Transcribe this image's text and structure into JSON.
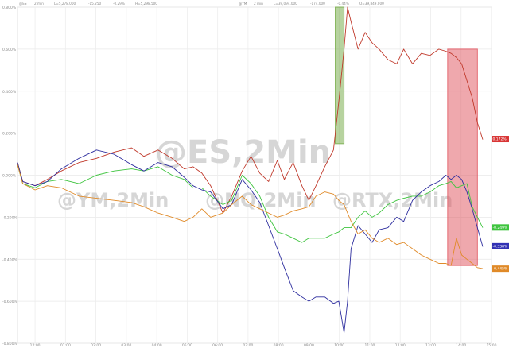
{
  "chart_data": {
    "type": "line",
    "title": "",
    "xlabel": "",
    "ylabel": "",
    "grid": true,
    "watermarks": [
      "@ES,2Min",
      "@YM,2Min",
      "@NQ,2Min",
      "@RTX,2Min"
    ],
    "header": {
      "es": [
        "@ES",
        "2 min",
        "L=5,278.000",
        "-15.250",
        "-0.29%",
        "H=5,298.500"
      ],
      "ym": [
        "@YM",
        "2 min",
        "L=39,094.000",
        "-174.000",
        "-0.44%",
        "O=39,849.000"
      ]
    },
    "ylim": [
      -0.8,
      0.8
    ],
    "x_tick_labels": [
      "12:00",
      "01:00",
      "02:00",
      "03:00",
      "04:00",
      "05:00",
      "06:00",
      "07:00",
      "08:00",
      "09:00",
      "10:00",
      "11:00",
      "12:00",
      "13:00",
      "14:00",
      "15:00"
    ],
    "y_tick_labels": [
      "0.800%",
      "0.600%",
      "0.400%",
      "0.200%",
      "0.000%",
      "-0.200%",
      "-0.400%",
      "-0.600%",
      "-0.800%"
    ],
    "highlight_regions": [
      {
        "x0": 181,
        "x1": 186,
        "color": "#6fa83f"
      },
      {
        "x0": 245,
        "x1": 262,
        "color": "#e0525c"
      }
    ],
    "end_labels": [
      {
        "text": "0.172%",
        "value": 0.172,
        "color": "#d83535"
      },
      {
        "text": "-0.249%",
        "value": -0.249,
        "color": "#3ec43e"
      },
      {
        "text": "-0.338%",
        "value": -0.338,
        "color": "#3232b4"
      },
      {
        "text": "-0.445%",
        "value": -0.445,
        "color": "#e08a28"
      }
    ],
    "series": [
      {
        "color": "#c0392b",
        "points": [
          [
            0,
            0.06
          ],
          [
            3,
            -0.03
          ],
          [
            10,
            -0.05
          ],
          [
            17,
            -0.02
          ],
          [
            25,
            0.02
          ],
          [
            35,
            0.06
          ],
          [
            45,
            0.08
          ],
          [
            55,
            0.11
          ],
          [
            65,
            0.13
          ],
          [
            72,
            0.09
          ],
          [
            80,
            0.12
          ],
          [
            88,
            0.08
          ],
          [
            95,
            0.03
          ],
          [
            100,
            0.04
          ],
          [
            105,
            0.01
          ],
          [
            110,
            -0.05
          ],
          [
            117,
            -0.18
          ],
          [
            122,
            -0.1
          ],
          [
            128,
            0.02
          ],
          [
            133,
            0.09
          ],
          [
            138,
            0.01
          ],
          [
            143,
            -0.03
          ],
          [
            148,
            0.07
          ],
          [
            152,
            -0.02
          ],
          [
            157,
            0.06
          ],
          [
            162,
            -0.05
          ],
          [
            166,
            -0.12
          ],
          [
            170,
            -0.05
          ],
          [
            175,
            0.04
          ],
          [
            180,
            0.12
          ],
          [
            183,
            0.35
          ],
          [
            186,
            0.6
          ],
          [
            188,
            0.8
          ],
          [
            190,
            0.73
          ],
          [
            194,
            0.6
          ],
          [
            198,
            0.68
          ],
          [
            202,
            0.63
          ],
          [
            206,
            0.6
          ],
          [
            211,
            0.55
          ],
          [
            216,
            0.53
          ],
          [
            220,
            0.6
          ],
          [
            225,
            0.53
          ],
          [
            230,
            0.58
          ],
          [
            235,
            0.57
          ],
          [
            240,
            0.6
          ],
          [
            244,
            0.59
          ],
          [
            247,
            0.58
          ],
          [
            250,
            0.56
          ],
          [
            253,
            0.53
          ],
          [
            256,
            0.45
          ],
          [
            259,
            0.37
          ],
          [
            262,
            0.25
          ],
          [
            265,
            0.17
          ]
        ]
      },
      {
        "color": "#3ec43e",
        "points": [
          [
            0,
            0.05
          ],
          [
            3,
            -0.04
          ],
          [
            10,
            -0.06
          ],
          [
            17,
            -0.03
          ],
          [
            25,
            -0.02
          ],
          [
            35,
            -0.04
          ],
          [
            45,
            0.0
          ],
          [
            55,
            0.02
          ],
          [
            65,
            0.03
          ],
          [
            72,
            0.02
          ],
          [
            80,
            0.04
          ],
          [
            88,
            0.0
          ],
          [
            95,
            -0.02
          ],
          [
            100,
            -0.06
          ],
          [
            105,
            -0.06
          ],
          [
            110,
            -0.1
          ],
          [
            117,
            -0.14
          ],
          [
            122,
            -0.12
          ],
          [
            128,
            0.0
          ],
          [
            133,
            -0.04
          ],
          [
            138,
            -0.1
          ],
          [
            143,
            -0.2
          ],
          [
            148,
            -0.27
          ],
          [
            152,
            -0.28
          ],
          [
            157,
            -0.3
          ],
          [
            162,
            -0.32
          ],
          [
            166,
            -0.3
          ],
          [
            170,
            -0.3
          ],
          [
            175,
            -0.3
          ],
          [
            180,
            -0.28
          ],
          [
            183,
            -0.27
          ],
          [
            186,
            -0.25
          ],
          [
            190,
            -0.25
          ],
          [
            194,
            -0.2
          ],
          [
            198,
            -0.17
          ],
          [
            202,
            -0.2
          ],
          [
            206,
            -0.18
          ],
          [
            211,
            -0.14
          ],
          [
            216,
            -0.12
          ],
          [
            220,
            -0.11
          ],
          [
            225,
            -0.1
          ],
          [
            230,
            -0.1
          ],
          [
            235,
            -0.08
          ],
          [
            240,
            -0.05
          ],
          [
            244,
            -0.04
          ],
          [
            247,
            -0.03
          ],
          [
            250,
            -0.06
          ],
          [
            253,
            -0.05
          ],
          [
            256,
            -0.04
          ],
          [
            259,
            -0.15
          ],
          [
            262,
            -0.2
          ],
          [
            265,
            -0.25
          ]
        ]
      },
      {
        "color": "#2d2d9e",
        "points": [
          [
            0,
            0.06
          ],
          [
            3,
            -0.03
          ],
          [
            10,
            -0.05
          ],
          [
            17,
            -0.03
          ],
          [
            25,
            0.03
          ],
          [
            35,
            0.08
          ],
          [
            45,
            0.12
          ],
          [
            55,
            0.1
          ],
          [
            65,
            0.05
          ],
          [
            72,
            0.02
          ],
          [
            80,
            0.06
          ],
          [
            88,
            0.04
          ],
          [
            95,
            -0.01
          ],
          [
            100,
            -0.05
          ],
          [
            105,
            -0.07
          ],
          [
            110,
            -0.08
          ],
          [
            117,
            -0.16
          ],
          [
            122,
            -0.14
          ],
          [
            128,
            -0.02
          ],
          [
            133,
            -0.07
          ],
          [
            138,
            -0.13
          ],
          [
            143,
            -0.24
          ],
          [
            148,
            -0.35
          ],
          [
            152,
            -0.44
          ],
          [
            157,
            -0.55
          ],
          [
            162,
            -0.58
          ],
          [
            166,
            -0.6
          ],
          [
            170,
            -0.58
          ],
          [
            175,
            -0.58
          ],
          [
            180,
            -0.61
          ],
          [
            183,
            -0.6
          ],
          [
            186,
            -0.75
          ],
          [
            188,
            -0.6
          ],
          [
            190,
            -0.35
          ],
          [
            194,
            -0.24
          ],
          [
            198,
            -0.28
          ],
          [
            202,
            -0.32
          ],
          [
            206,
            -0.26
          ],
          [
            211,
            -0.25
          ],
          [
            216,
            -0.2
          ],
          [
            220,
            -0.22
          ],
          [
            225,
            -0.12
          ],
          [
            230,
            -0.08
          ],
          [
            235,
            -0.05
          ],
          [
            240,
            -0.03
          ],
          [
            244,
            0.0
          ],
          [
            247,
            -0.02
          ],
          [
            250,
            0.0
          ],
          [
            253,
            -0.02
          ],
          [
            256,
            -0.08
          ],
          [
            259,
            -0.16
          ],
          [
            262,
            -0.25
          ],
          [
            265,
            -0.34
          ]
        ]
      },
      {
        "color": "#e08a28",
        "points": [
          [
            0,
            0.05
          ],
          [
            3,
            -0.04
          ],
          [
            10,
            -0.07
          ],
          [
            17,
            -0.05
          ],
          [
            25,
            -0.06
          ],
          [
            35,
            -0.1
          ],
          [
            45,
            -0.11
          ],
          [
            55,
            -0.12
          ],
          [
            65,
            -0.13
          ],
          [
            72,
            -0.15
          ],
          [
            80,
            -0.18
          ],
          [
            88,
            -0.2
          ],
          [
            95,
            -0.22
          ],
          [
            100,
            -0.2
          ],
          [
            105,
            -0.16
          ],
          [
            110,
            -0.2
          ],
          [
            117,
            -0.18
          ],
          [
            122,
            -0.14
          ],
          [
            128,
            -0.1
          ],
          [
            133,
            -0.14
          ],
          [
            138,
            -0.16
          ],
          [
            143,
            -0.18
          ],
          [
            148,
            -0.2
          ],
          [
            152,
            -0.19
          ],
          [
            157,
            -0.17
          ],
          [
            162,
            -0.16
          ],
          [
            166,
            -0.15
          ],
          [
            170,
            -0.1
          ],
          [
            175,
            -0.08
          ],
          [
            180,
            -0.09
          ],
          [
            183,
            -0.12
          ],
          [
            186,
            -0.14
          ],
          [
            190,
            -0.22
          ],
          [
            194,
            -0.28
          ],
          [
            198,
            -0.26
          ],
          [
            202,
            -0.3
          ],
          [
            206,
            -0.32
          ],
          [
            211,
            -0.3
          ],
          [
            216,
            -0.33
          ],
          [
            220,
            -0.32
          ],
          [
            225,
            -0.35
          ],
          [
            230,
            -0.38
          ],
          [
            235,
            -0.4
          ],
          [
            240,
            -0.42
          ],
          [
            244,
            -0.42
          ],
          [
            247,
            -0.43
          ],
          [
            250,
            -0.3
          ],
          [
            253,
            -0.38
          ],
          [
            256,
            -0.4
          ],
          [
            259,
            -0.42
          ],
          [
            262,
            -0.44
          ],
          [
            265,
            -0.445
          ]
        ]
      }
    ]
  }
}
